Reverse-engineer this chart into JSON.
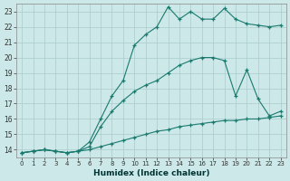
{
  "xlabel": "Humidex (Indice chaleur)",
  "bg_color": "#cce8e8",
  "grid_color": "#aacccc",
  "line_color": "#1a7a6e",
  "xlim": [
    -0.5,
    23.5
  ],
  "ylim": [
    13.5,
    23.5
  ],
  "xticks": [
    0,
    1,
    2,
    3,
    4,
    5,
    6,
    7,
    8,
    9,
    10,
    11,
    12,
    13,
    14,
    15,
    16,
    17,
    18,
    19,
    20,
    21,
    22,
    23
  ],
  "yticks": [
    14,
    15,
    16,
    17,
    18,
    19,
    20,
    21,
    22,
    23
  ],
  "line1_x": [
    0,
    1,
    2,
    3,
    4,
    5,
    6,
    7,
    8,
    9,
    10,
    11,
    12,
    13,
    14,
    15,
    16,
    17,
    18,
    19,
    20,
    21,
    22,
    23
  ],
  "line1_y": [
    13.8,
    13.9,
    14.0,
    13.9,
    13.8,
    13.9,
    14.5,
    16.0,
    17.5,
    18.5,
    20.8,
    21.5,
    22.0,
    23.3,
    22.5,
    23.0,
    22.5,
    22.5,
    23.2,
    22.5,
    22.2,
    22.1,
    22.0,
    22.1
  ],
  "line2_x": [
    0,
    1,
    2,
    3,
    4,
    5,
    6,
    7,
    8,
    9,
    10,
    11,
    12,
    13,
    14,
    15,
    16,
    17,
    18,
    19,
    20,
    21,
    22,
    23
  ],
  "line2_y": [
    13.8,
    13.9,
    14.0,
    13.9,
    13.8,
    13.9,
    14.2,
    15.5,
    16.5,
    17.2,
    17.8,
    18.2,
    18.5,
    19.0,
    19.5,
    19.8,
    20.0,
    20.0,
    19.8,
    17.5,
    19.2,
    17.3,
    16.2,
    16.5
  ],
  "line3_x": [
    0,
    1,
    2,
    3,
    4,
    5,
    6,
    7,
    8,
    9,
    10,
    11,
    12,
    13,
    14,
    15,
    16,
    17,
    18,
    19,
    20,
    21,
    22,
    23
  ],
  "line3_y": [
    13.8,
    13.9,
    14.0,
    13.9,
    13.8,
    13.9,
    14.0,
    14.2,
    14.4,
    14.6,
    14.8,
    15.0,
    15.2,
    15.3,
    15.5,
    15.6,
    15.7,
    15.8,
    15.9,
    15.9,
    16.0,
    16.0,
    16.1,
    16.2
  ]
}
